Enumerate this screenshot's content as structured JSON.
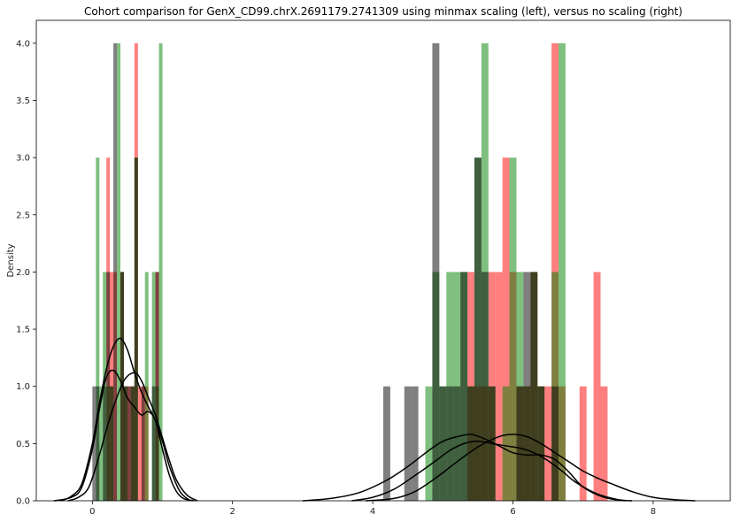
{
  "chart_data": {
    "type": "bar",
    "title": "Cohort comparison for GenX_CD99.chrX.2691179.2741309 using minmax scaling (left), versus no scaling (right)",
    "xlabel": "",
    "ylabel": "Density",
    "xlim": [
      -0.8,
      9.1
    ],
    "ylim": [
      0,
      4.2
    ],
    "xticks": [
      0,
      2,
      4,
      6,
      8
    ],
    "xtick_labels": [
      "0",
      "2",
      "4",
      "6",
      "8"
    ],
    "yticks": [
      0.0,
      0.5,
      1.0,
      1.5,
      2.0,
      2.5,
      3.0,
      3.5,
      4.0
    ],
    "ytick_labels": [
      "0.0",
      "0.5",
      "1.0",
      "1.5",
      "2.0",
      "2.5",
      "3.0",
      "3.5",
      "4.0"
    ],
    "grid": false,
    "legend": "none",
    "colors": {
      "red": "#ff0000",
      "green": "#008000",
      "gray": "#000000",
      "kde": "#000000"
    },
    "bar_alpha": 0.5,
    "series": [
      {
        "color": "red",
        "bars": [
          [
            0.2,
            0.25,
            3
          ],
          [
            0.25,
            0.3,
            2
          ],
          [
            0.3,
            0.35,
            2
          ],
          [
            0.4,
            0.45,
            2
          ],
          [
            0.45,
            0.5,
            1
          ],
          [
            0.5,
            0.55,
            1
          ],
          [
            0.55,
            0.6,
            1
          ],
          [
            0.6,
            0.65,
            4
          ],
          [
            0.65,
            0.7,
            1
          ],
          [
            0.7,
            0.75,
            1
          ],
          [
            0.75,
            0.8,
            1
          ],
          [
            0.9,
            0.95,
            2
          ],
          [
            5.35,
            5.45,
            2
          ],
          [
            5.45,
            5.55,
            1
          ],
          [
            5.55,
            5.65,
            1
          ],
          [
            5.65,
            5.75,
            2
          ],
          [
            5.75,
            5.85,
            2
          ],
          [
            5.85,
            5.95,
            3
          ],
          [
            5.95,
            6.05,
            2
          ],
          [
            6.05,
            6.15,
            1
          ],
          [
            6.15,
            6.25,
            1
          ],
          [
            6.25,
            6.35,
            2
          ],
          [
            6.35,
            6.45,
            1
          ],
          [
            6.45,
            6.55,
            1
          ],
          [
            6.55,
            6.65,
            4
          ],
          [
            6.65,
            6.75,
            1
          ],
          [
            6.95,
            7.05,
            1
          ],
          [
            7.15,
            7.25,
            2
          ],
          [
            7.25,
            7.35,
            1
          ]
        ]
      },
      {
        "color": "green",
        "bars": [
          [
            0.05,
            0.1,
            3
          ],
          [
            0.1,
            0.15,
            1
          ],
          [
            0.15,
            0.2,
            2
          ],
          [
            0.2,
            0.25,
            1
          ],
          [
            0.25,
            0.3,
            1
          ],
          [
            0.35,
            0.4,
            4
          ],
          [
            0.4,
            0.45,
            2
          ],
          [
            0.45,
            0.5,
            1
          ],
          [
            0.55,
            0.6,
            1
          ],
          [
            0.6,
            0.65,
            3
          ],
          [
            0.75,
            0.8,
            2
          ],
          [
            0.85,
            0.9,
            2
          ],
          [
            0.9,
            0.95,
            1
          ],
          [
            0.95,
            1.0,
            4
          ],
          [
            4.75,
            4.85,
            1
          ],
          [
            4.85,
            4.95,
            2
          ],
          [
            4.95,
            5.05,
            1
          ],
          [
            5.05,
            5.15,
            2
          ],
          [
            5.15,
            5.25,
            2
          ],
          [
            5.25,
            5.35,
            2
          ],
          [
            5.35,
            5.45,
            1
          ],
          [
            5.45,
            5.55,
            3
          ],
          [
            5.55,
            5.65,
            4
          ],
          [
            5.65,
            5.75,
            1
          ],
          [
            5.85,
            5.95,
            1
          ],
          [
            5.95,
            6.05,
            3
          ],
          [
            6.05,
            6.15,
            2
          ],
          [
            6.15,
            6.25,
            1
          ],
          [
            6.25,
            6.35,
            2
          ],
          [
            6.35,
            6.45,
            1
          ],
          [
            6.55,
            6.65,
            2
          ],
          [
            6.65,
            6.75,
            4
          ]
        ]
      },
      {
        "color": "gray",
        "bars": [
          [
            0.0,
            0.05,
            1
          ],
          [
            0.05,
            0.1,
            1
          ],
          [
            0.15,
            0.2,
            1
          ],
          [
            0.2,
            0.25,
            2
          ],
          [
            0.25,
            0.3,
            1
          ],
          [
            0.3,
            0.35,
            4
          ],
          [
            0.4,
            0.45,
            2
          ],
          [
            0.45,
            0.5,
            1
          ],
          [
            0.5,
            0.55,
            1
          ],
          [
            0.55,
            0.6,
            1
          ],
          [
            0.6,
            0.65,
            3
          ],
          [
            0.7,
            0.75,
            1
          ],
          [
            0.85,
            0.9,
            1
          ],
          [
            0.9,
            0.95,
            2
          ],
          [
            4.15,
            4.25,
            1
          ],
          [
            4.45,
            4.55,
            1
          ],
          [
            4.55,
            4.65,
            1
          ],
          [
            4.85,
            4.95,
            4
          ],
          [
            4.95,
            5.05,
            1
          ],
          [
            5.05,
            5.15,
            1
          ],
          [
            5.15,
            5.25,
            1
          ],
          [
            5.25,
            5.35,
            2
          ],
          [
            5.35,
            5.45,
            1
          ],
          [
            5.45,
            5.55,
            3
          ],
          [
            5.55,
            5.65,
            2
          ],
          [
            5.65,
            5.75,
            1
          ],
          [
            6.05,
            6.15,
            1
          ],
          [
            6.15,
            6.25,
            2
          ],
          [
            6.25,
            6.35,
            2
          ],
          [
            6.35,
            6.45,
            1
          ],
          [
            6.55,
            6.65,
            1
          ]
        ]
      }
    ],
    "kde_curves": [
      {
        "x": [
          -0.55,
          -0.3,
          -0.15,
          0.0,
          0.1,
          0.2,
          0.3,
          0.4,
          0.5,
          0.6,
          0.7,
          0.8,
          0.9,
          1.0,
          1.1,
          1.2,
          1.3,
          1.45
        ],
        "y": [
          0,
          0.03,
          0.12,
          0.45,
          0.8,
          1.08,
          1.14,
          1.05,
          0.9,
          0.82,
          0.75,
          0.78,
          0.7,
          0.45,
          0.22,
          0.08,
          0.02,
          0
        ]
      },
      {
        "x": [
          -0.45,
          -0.3,
          -0.15,
          0.0,
          0.1,
          0.2,
          0.3,
          0.4,
          0.5,
          0.6,
          0.7,
          0.8,
          0.9,
          1.0,
          1.1,
          1.25,
          1.4
        ],
        "y": [
          0,
          0.04,
          0.15,
          0.5,
          0.85,
          1.15,
          1.35,
          1.42,
          1.32,
          1.12,
          0.95,
          0.82,
          0.7,
          0.52,
          0.3,
          0.08,
          0
        ]
      },
      {
        "x": [
          -0.35,
          -0.2,
          -0.05,
          0.1,
          0.2,
          0.3,
          0.45,
          0.6,
          0.7,
          0.8,
          0.9,
          1.0,
          1.1,
          1.2,
          1.35,
          1.5
        ],
        "y": [
          0,
          0.03,
          0.12,
          0.4,
          0.62,
          0.82,
          1.05,
          1.12,
          1.05,
          0.9,
          0.75,
          0.55,
          0.35,
          0.18,
          0.05,
          0
        ]
      },
      {
        "x": [
          3.0,
          3.4,
          3.8,
          4.2,
          4.5,
          4.8,
          5.0,
          5.2,
          5.4,
          5.6,
          5.8,
          6.0,
          6.2,
          6.4,
          6.6,
          6.8,
          7.0,
          7.3,
          7.6
        ],
        "y": [
          0,
          0.02,
          0.07,
          0.18,
          0.3,
          0.44,
          0.52,
          0.56,
          0.58,
          0.54,
          0.48,
          0.42,
          0.4,
          0.4,
          0.36,
          0.25,
          0.12,
          0.03,
          0
        ]
      },
      {
        "x": [
          3.7,
          4.0,
          4.3,
          4.6,
          4.9,
          5.1,
          5.3,
          5.5,
          5.7,
          5.9,
          6.1,
          6.3,
          6.5,
          6.7,
          6.9,
          7.2,
          7.5,
          7.7
        ],
        "y": [
          0,
          0.03,
          0.1,
          0.22,
          0.35,
          0.44,
          0.5,
          0.52,
          0.5,
          0.48,
          0.46,
          0.42,
          0.35,
          0.26,
          0.16,
          0.06,
          0.01,
          0
        ]
      },
      {
        "x": [
          3.9,
          4.3,
          4.6,
          4.9,
          5.2,
          5.5,
          5.8,
          6.0,
          6.2,
          6.4,
          6.6,
          6.8,
          7.0,
          7.2,
          7.4,
          7.7,
          8.0,
          8.3,
          8.6
        ],
        "y": [
          0,
          0.02,
          0.08,
          0.2,
          0.34,
          0.47,
          0.56,
          0.58,
          0.56,
          0.5,
          0.42,
          0.34,
          0.26,
          0.2,
          0.15,
          0.08,
          0.03,
          0.01,
          0
        ]
      }
    ]
  }
}
